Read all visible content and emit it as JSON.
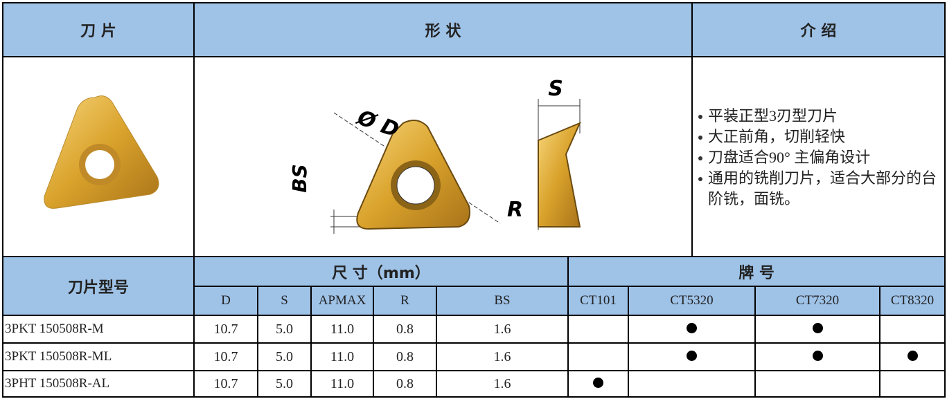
{
  "header": {
    "insert": "刀 片",
    "shape": "形 状",
    "intro": "介 绍"
  },
  "diagram": {
    "s": "S",
    "d": "Ø D",
    "bs": "BS",
    "r": "R"
  },
  "intro_items": [
    "平装正型3刃型刀片",
    "大正前角，切削轻快",
    "刀盘适合90° 主偏角设计",
    "通用的铣削刀片，适合大部分的台阶铣，面铣。"
  ],
  "table": {
    "model_header": "刀片型号",
    "size_header": "尺 寸（mm）",
    "grade_header": "牌 号",
    "size_columns": [
      "D",
      "S",
      "APMAX",
      "R",
      "BS"
    ],
    "grade_columns": [
      "CT101",
      "CT5320",
      "CT7320",
      "CT8320"
    ],
    "rows": [
      {
        "model": "3PKT 150508R-M",
        "sizes": [
          "10.7",
          "5.0",
          "11.0",
          "0.8",
          "1.6"
        ],
        "grades": [
          false,
          true,
          true,
          false
        ]
      },
      {
        "model": "3PKT 150508R-ML",
        "sizes": [
          "10.7",
          "5.0",
          "11.0",
          "0.8",
          "1.6"
        ],
        "grades": [
          false,
          true,
          true,
          true
        ]
      },
      {
        "model": "3PHT 150508R-AL",
        "sizes": [
          "10.7",
          "5.0",
          "11.0",
          "0.8",
          "1.6"
        ],
        "grades": [
          true,
          false,
          false,
          false
        ]
      }
    ]
  }
}
